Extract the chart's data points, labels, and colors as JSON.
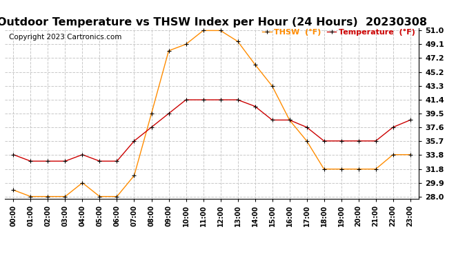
{
  "title": "Outdoor Temperature vs THSW Index per Hour (24 Hours)  20230308",
  "copyright": "Copyright 2023 Cartronics.com",
  "hours": [
    "00:00",
    "01:00",
    "02:00",
    "03:00",
    "04:00",
    "05:00",
    "06:00",
    "07:00",
    "08:00",
    "09:00",
    "10:00",
    "11:00",
    "12:00",
    "13:00",
    "14:00",
    "15:00",
    "16:00",
    "17:00",
    "18:00",
    "19:00",
    "20:00",
    "21:00",
    "22:00",
    "23:00"
  ],
  "temperature": [
    33.8,
    32.9,
    32.9,
    32.9,
    33.8,
    32.9,
    32.9,
    35.7,
    37.6,
    39.5,
    41.4,
    41.4,
    41.4,
    41.4,
    40.5,
    38.6,
    38.6,
    37.6,
    35.7,
    35.7,
    35.7,
    35.7,
    37.6,
    38.6
  ],
  "thsw": [
    28.9,
    28.0,
    28.0,
    28.0,
    29.9,
    28.0,
    28.0,
    30.9,
    39.5,
    48.2,
    49.1,
    51.0,
    51.0,
    49.5,
    46.3,
    43.3,
    38.6,
    35.7,
    31.8,
    31.8,
    31.8,
    31.8,
    33.8,
    33.8
  ],
  "temp_color": "#cc0000",
  "thsw_color": "#ff8c00",
  "ylim_min": 28.0,
  "ylim_max": 51.0,
  "yticks": [
    28.0,
    29.9,
    31.8,
    33.8,
    35.7,
    37.6,
    39.5,
    41.4,
    43.3,
    45.2,
    47.2,
    49.1,
    51.0
  ],
  "background_color": "#ffffff",
  "grid_color": "#c8c8c8",
  "title_fontsize": 11.5,
  "copyright_fontsize": 7.5,
  "legend_thsw": "THSW  (°F)",
  "legend_temp": "Temperature  (°F)"
}
